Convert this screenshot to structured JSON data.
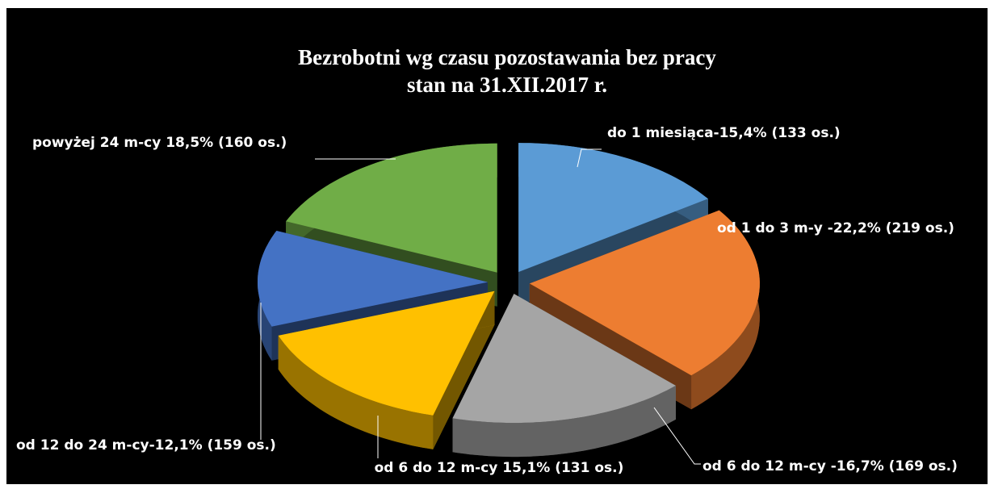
{
  "chart_data": {
    "type": "pie",
    "title": "Bezrobotni wg czasu pozostawania bez pracy",
    "subtitle": "stan na 31.XII.2017 r.",
    "values": [
      15.4,
      22.2,
      16.7,
      15.1,
      12.1,
      18.5
    ],
    "value_labels": [
      "do 1 miesiąca-15,4% (133 os.)",
      "od 1 do 3 m-y -22,2% (219 os.)",
      "od 6 do 12 m-cy -16,7% (169 os.)",
      "od 6 do 12 m-cy 15,1% (131 os.)",
      "od 12 do 24 m-cy-12,1% (159 os.)",
      "powyżej 24 m-cy 18,5% (160 os.)"
    ],
    "colors": [
      "#5b9bd5",
      "#ed7d31",
      "#a5a5a5",
      "#ffc000",
      "#4472c4",
      "#70ad47"
    ]
  }
}
